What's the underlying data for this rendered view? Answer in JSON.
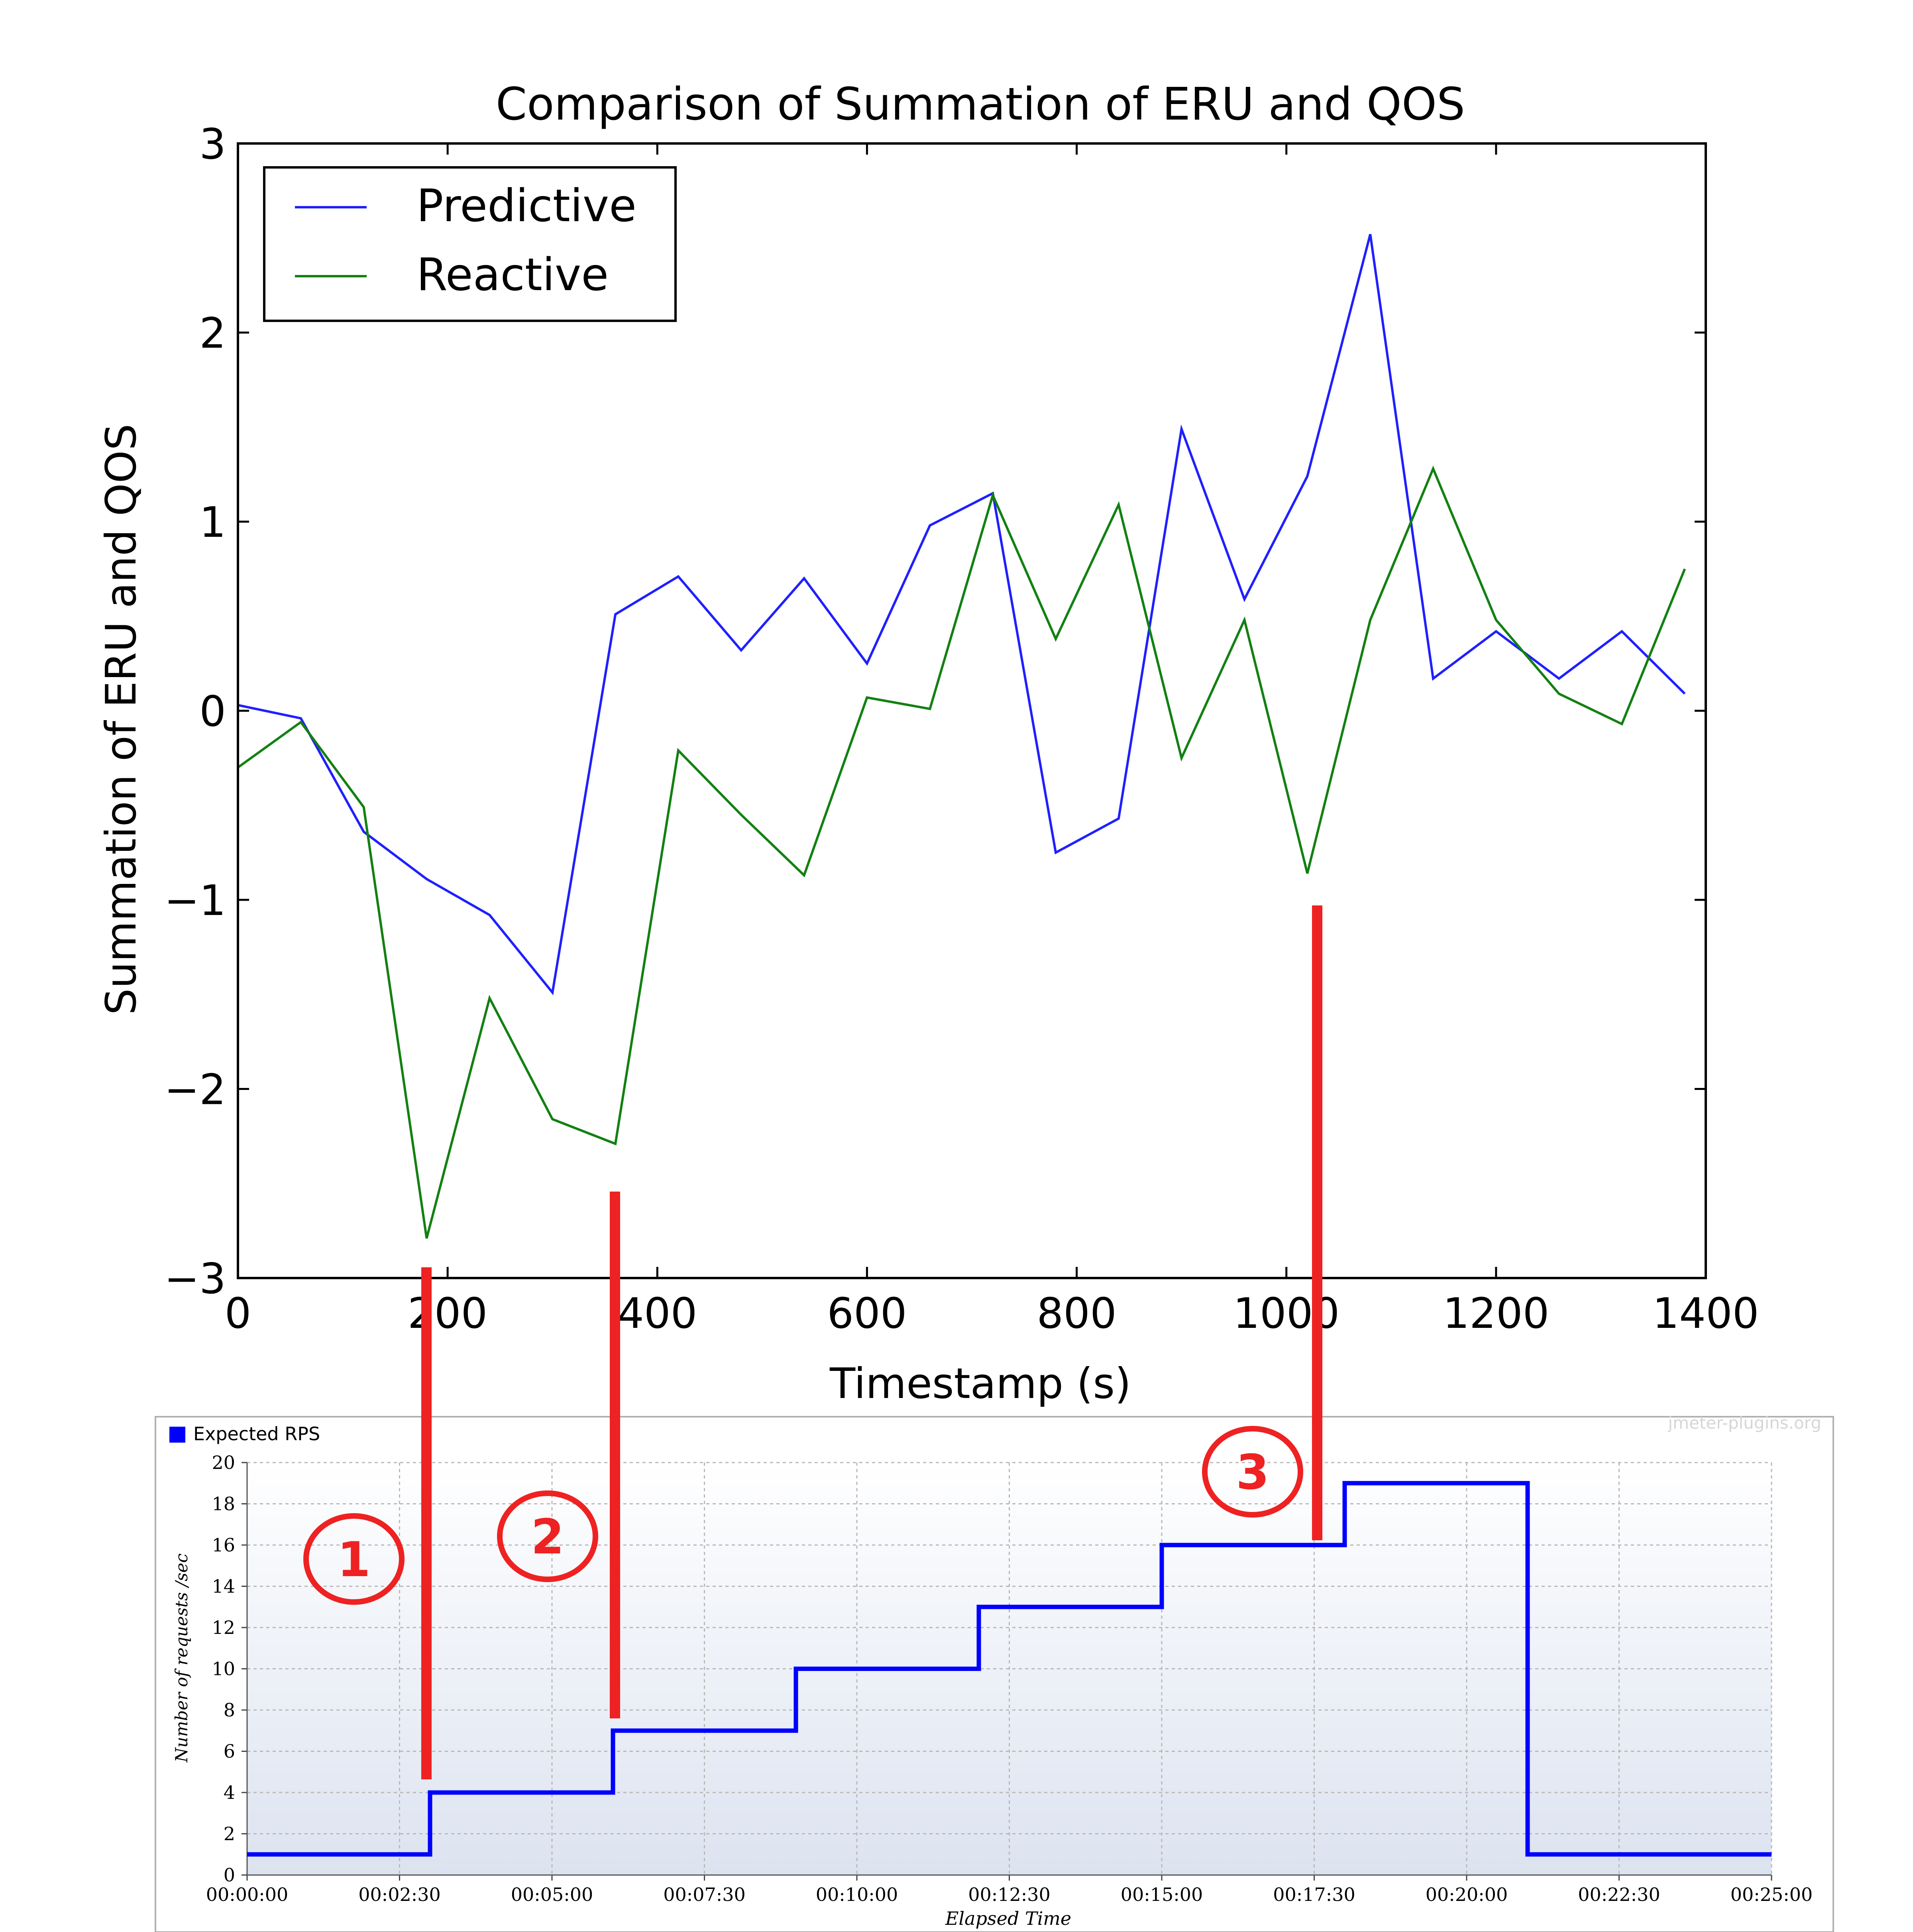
{
  "chart_data": [
    {
      "type": "line",
      "title": "Comparison of Summation of ERU and QOS",
      "xlabel": "Timestamp (s)",
      "ylabel": "Summation of ERU and QOS",
      "xlim": [
        0,
        1400
      ],
      "ylim": [
        -3,
        3
      ],
      "xticks": [
        0,
        200,
        400,
        600,
        800,
        1000,
        1200,
        1400
      ],
      "xtick_labels": [
        "0",
        "200",
        "400",
        "600",
        "800",
        "1000",
        "1200",
        "1400"
      ],
      "yticks": [
        3,
        2,
        1,
        0,
        -1,
        -2,
        -3
      ],
      "ytick_labels": [
        "3",
        "2",
        "1",
        "0",
        "−1",
        "−2",
        "−3"
      ],
      "grid": false,
      "legend": "top-left",
      "x": [
        0,
        60,
        120,
        180,
        240,
        300,
        360,
        420,
        480,
        540,
        600,
        660,
        720,
        780,
        840,
        900,
        960,
        1020,
        1080,
        1140,
        1200,
        1260,
        1320,
        1380
      ],
      "series": [
        {
          "name": "Predictive",
          "color": "#1f1fff",
          "values": [
            0.03,
            -0.04,
            -0.64,
            -0.89,
            -1.08,
            -1.49,
            0.51,
            0.71,
            0.32,
            0.7,
            0.25,
            0.98,
            1.15,
            -0.75,
            -0.57,
            1.49,
            0.59,
            1.24,
            2.52,
            0.17,
            0.42,
            0.17,
            0.42,
            0.09
          ]
        },
        {
          "name": "Reactive",
          "color": "#128012",
          "values": [
            -0.3,
            -0.06,
            -0.51,
            -2.79,
            -1.52,
            -2.16,
            -2.29,
            -0.21,
            -0.55,
            -0.87,
            0.07,
            0.01,
            1.14,
            0.38,
            1.09,
            -0.25,
            0.48,
            -0.86,
            0.48,
            1.28,
            0.48,
            0.09,
            -0.07,
            0.75
          ]
        }
      ]
    },
    {
      "type": "line",
      "title": "",
      "xlabel": "Elapsed Time",
      "ylabel": "Number of requests /sec",
      "watermark": "jmeter-plugins.org",
      "xlim": [
        "00:00:00",
        "00:25:00"
      ],
      "ylim": [
        0,
        20
      ],
      "grid": true,
      "legend": "top-left",
      "xtick_labels": [
        "00:00:00",
        "00:02:30",
        "00:05:00",
        "00:07:30",
        "00:10:00",
        "00:12:30",
        "00:15:00",
        "00:17:30",
        "00:20:00",
        "00:22:30",
        "00:25:00"
      ],
      "yticks": [
        0,
        2,
        4,
        6,
        8,
        10,
        12,
        14,
        16,
        18,
        20
      ],
      "ytick_labels": [
        "0",
        "2",
        "4",
        "6",
        "8",
        "10",
        "12",
        "14",
        "16",
        "18",
        "20"
      ],
      "x": [
        "00:00:00",
        "00:03:00",
        "00:03:00",
        "00:06:00",
        "00:06:00",
        "00:09:00",
        "00:09:00",
        "00:12:00",
        "00:12:00",
        "00:15:00",
        "00:15:00",
        "00:18:00",
        "00:18:00",
        "00:21:00",
        "00:21:00",
        "00:25:00"
      ],
      "series": [
        {
          "name": "Expected RPS",
          "color": "#0000ff",
          "values": [
            1,
            1,
            4,
            4,
            7,
            7,
            10,
            10,
            13,
            13,
            16,
            16,
            19,
            19,
            1,
            1
          ]
        }
      ]
    }
  ],
  "annotations": {
    "labels": [
      "1",
      "2",
      "3"
    ],
    "color": "#ee2222"
  }
}
